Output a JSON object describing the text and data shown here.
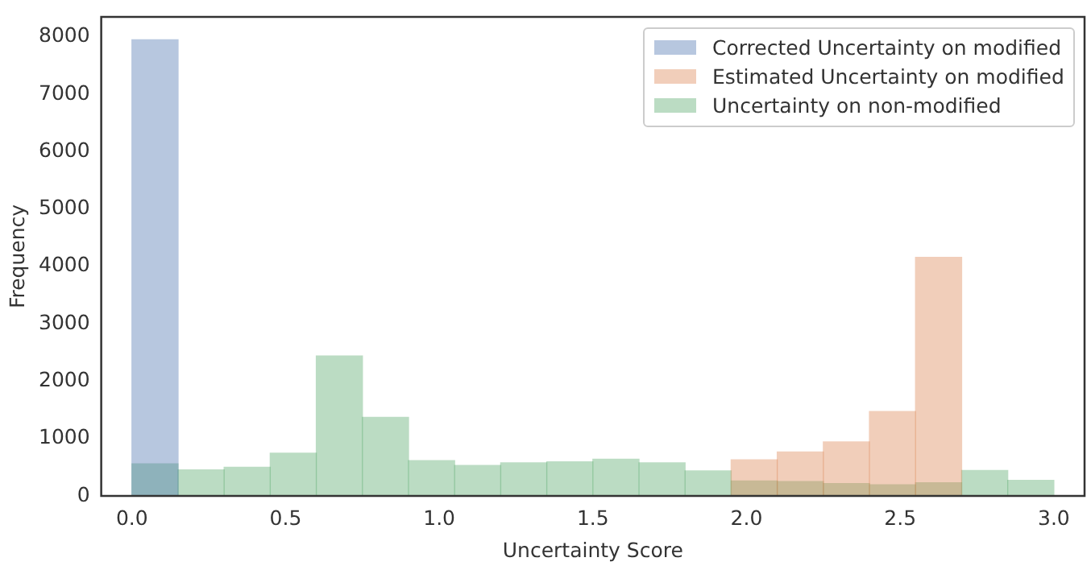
{
  "chart_data": {
    "type": "histogram",
    "xlabel": "Uncertainty Score",
    "ylabel": "Frequency",
    "xlim": [
      -0.1,
      3.1
    ],
    "ylim": [
      0,
      8350
    ],
    "xticks": [
      {
        "value": 0,
        "label": "0.0"
      },
      {
        "value": 0.5,
        "label": "0.5"
      },
      {
        "value": 1,
        "label": "1.0"
      },
      {
        "value": 1.5,
        "label": "1.5"
      },
      {
        "value": 2,
        "label": "2.0"
      },
      {
        "value": 2.5,
        "label": "2.5"
      },
      {
        "value": 3,
        "label": "3.0"
      }
    ],
    "yticks": [
      0,
      1000,
      2000,
      3000,
      4000,
      5000,
      6000,
      7000,
      8000
    ],
    "legend": "top right",
    "bins": [
      0,
      0.15,
      0.3,
      0.45,
      0.6,
      0.75,
      0.9,
      1.05,
      1.2,
      1.35,
      1.5,
      1.65,
      1.8,
      1.95,
      2.1,
      2.25,
      2.4,
      2.55,
      2.7,
      2.85,
      3.0
    ],
    "series": [
      {
        "name": "Corrected Uncertainty on modified",
        "color": "#b7c7df",
        "values": [
          7950,
          0,
          0,
          0,
          0,
          0,
          0,
          0,
          0,
          0,
          0,
          0,
          0,
          0,
          0,
          0,
          0,
          0,
          0,
          0
        ]
      },
      {
        "name": "Estimated Uncertainty on modified",
        "color": "#f1ceba",
        "values": [
          0,
          0,
          0,
          0,
          0,
          0,
          0,
          0,
          0,
          0,
          0,
          0,
          0,
          630,
          765,
          940,
          1470,
          4160,
          0,
          0
        ]
      },
      {
        "name": "Uncertainty on non-modified",
        "color": "#bbdcc3",
        "values": [
          560,
          455,
          500,
          745,
          2440,
          1370,
          615,
          530,
          575,
          595,
          640,
          575,
          435,
          260,
          250,
          215,
          195,
          230,
          445,
          270
        ]
      }
    ]
  }
}
